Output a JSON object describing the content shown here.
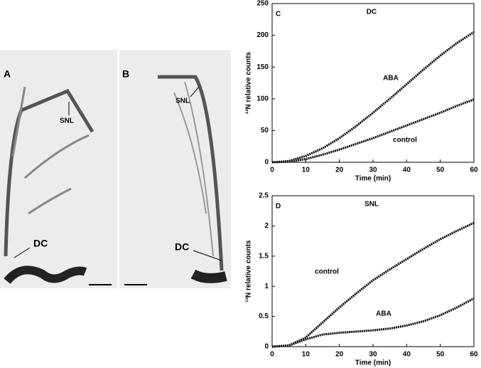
{
  "images": [
    {
      "panel": "A",
      "labels": [
        "SNL",
        "DC"
      ]
    },
    {
      "panel": "B",
      "labels": [
        "SNL",
        "DC"
      ]
    }
  ],
  "chart_data": [
    {
      "type": "line",
      "panel": "C",
      "title": "DC",
      "x_label": "Time (min)",
      "y_label": "¹³N relative counts",
      "x": [
        0,
        5,
        10,
        15,
        20,
        25,
        30,
        35,
        40,
        45,
        50,
        55,
        60
      ],
      "series": [
        {
          "name": "ABA",
          "color": "#000000",
          "values": [
            0,
            2,
            10,
            22,
            38,
            57,
            78,
            100,
            123,
            146,
            168,
            188,
            205
          ]
        },
        {
          "name": "control",
          "color": "#000000",
          "values": [
            0,
            1,
            5,
            12,
            20,
            29,
            38,
            48,
            58,
            68,
            78,
            89,
            99
          ]
        }
      ],
      "xlim": [
        0,
        60
      ],
      "ylim": [
        0,
        250
      ],
      "xticks": [
        0,
        10,
        20,
        30,
        40,
        50,
        60
      ],
      "yticks": [
        0,
        50,
        100,
        150,
        200,
        250
      ]
    },
    {
      "type": "line",
      "panel": "D",
      "title": "SNL",
      "x_label": "Time (min)",
      "y_label": "¹³N relative counts",
      "x": [
        0,
        5,
        10,
        15,
        20,
        25,
        30,
        35,
        40,
        45,
        50,
        55,
        60
      ],
      "series": [
        {
          "name": "control",
          "color": "#000000",
          "values": [
            0,
            0.02,
            0.15,
            0.4,
            0.65,
            0.88,
            1.1,
            1.28,
            1.45,
            1.62,
            1.78,
            1.92,
            2.05
          ]
        },
        {
          "name": "ABA",
          "color": "#000000",
          "values": [
            0,
            0.02,
            0.12,
            0.2,
            0.23,
            0.25,
            0.27,
            0.3,
            0.35,
            0.42,
            0.52,
            0.65,
            0.8
          ]
        }
      ],
      "xlim": [
        0,
        60
      ],
      "ylim": [
        0,
        2.5
      ],
      "xticks": [
        0,
        10,
        20,
        30,
        40,
        50,
        60
      ],
      "yticks": [
        0,
        0.5,
        1,
        1.5,
        2,
        2.5
      ]
    }
  ]
}
